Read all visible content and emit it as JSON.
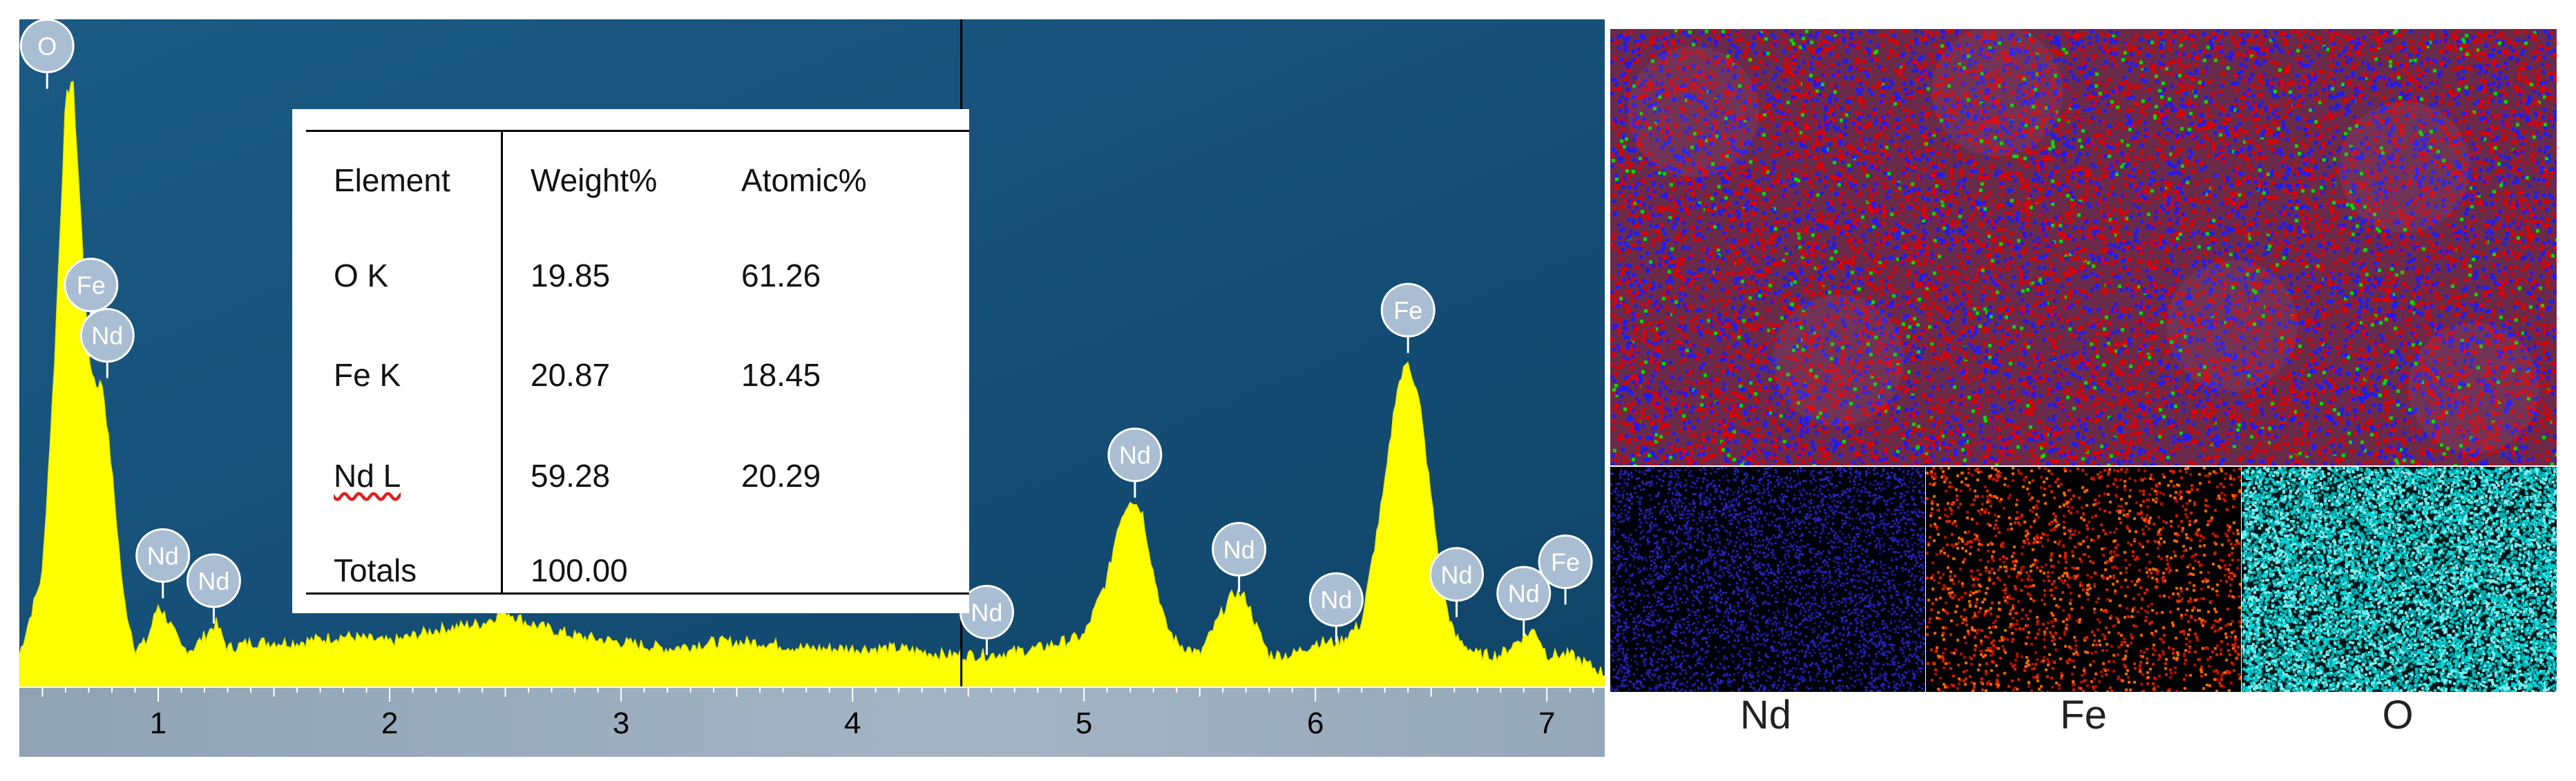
{
  "colors": {
    "plot_background": "#154f77",
    "spectrum_fill": "#ffff00",
    "axis_strip": "#94a7b8",
    "peak_marker": "#a9bed2",
    "map_red": "#e00000",
    "map_blue": "#1a1aff",
    "map_green": "#00e000",
    "map_nd": "#2626c8",
    "map_fe": "#e02000",
    "map_o": "#00d6d6"
  },
  "chart_data": {
    "type": "area",
    "x_ticks": [
      1,
      2,
      3,
      4,
      5,
      6,
      7
    ],
    "xlim": [
      0.4,
      7.25
    ],
    "ylim": [
      0,
      1
    ],
    "x": [
      0.4,
      0.5,
      0.55,
      0.6,
      0.63,
      0.66,
      0.7,
      0.73,
      0.76,
      0.8,
      0.85,
      0.9,
      0.95,
      1.0,
      1.05,
      1.1,
      1.15,
      1.2,
      1.25,
      1.3,
      1.4,
      1.6,
      1.8,
      2.0,
      2.2,
      2.4,
      2.5,
      2.6,
      2.8,
      3.0,
      3.2,
      3.4,
      3.6,
      3.8,
      4.0,
      4.2,
      4.4,
      4.6,
      4.8,
      5.0,
      5.1,
      5.15,
      5.2,
      5.25,
      5.3,
      5.35,
      5.4,
      5.5,
      5.6,
      5.65,
      5.7,
      5.75,
      5.8,
      5.9,
      6.0,
      6.1,
      6.2,
      6.3,
      6.35,
      6.4,
      6.45,
      6.5,
      6.55,
      6.6,
      6.7,
      6.8,
      6.9,
      6.95,
      7.0,
      7.1,
      7.25
    ],
    "y": [
      0.05,
      0.18,
      0.5,
      0.93,
      0.97,
      0.78,
      0.52,
      0.48,
      0.48,
      0.34,
      0.14,
      0.06,
      0.07,
      0.13,
      0.1,
      0.06,
      0.06,
      0.08,
      0.1,
      0.06,
      0.07,
      0.07,
      0.08,
      0.07,
      0.09,
      0.1,
      0.12,
      0.1,
      0.08,
      0.07,
      0.06,
      0.07,
      0.07,
      0.06,
      0.06,
      0.06,
      0.05,
      0.05,
      0.06,
      0.08,
      0.17,
      0.26,
      0.3,
      0.28,
      0.18,
      0.1,
      0.07,
      0.05,
      0.12,
      0.15,
      0.14,
      0.09,
      0.05,
      0.05,
      0.07,
      0.07,
      0.1,
      0.32,
      0.47,
      0.52,
      0.45,
      0.3,
      0.15,
      0.08,
      0.05,
      0.05,
      0.08,
      0.09,
      0.05,
      0.05,
      0.02
    ],
    "peaks": [
      {
        "label": "O",
        "x": 0.52,
        "y": 0.95
      },
      {
        "label": "Fe",
        "x": 0.71,
        "y": 0.57
      },
      {
        "label": "Nd",
        "x": 0.78,
        "y": 0.49
      },
      {
        "label": "Nd",
        "x": 1.02,
        "y": 0.14
      },
      {
        "label": "Nd",
        "x": 1.24,
        "y": 0.1
      },
      {
        "label": "Nd",
        "x": 4.58,
        "y": 0.05
      },
      {
        "label": "Nd",
        "x": 5.22,
        "y": 0.3
      },
      {
        "label": "Nd",
        "x": 5.67,
        "y": 0.15
      },
      {
        "label": "Nd",
        "x": 6.09,
        "y": 0.07
      },
      {
        "label": "Fe",
        "x": 6.4,
        "y": 0.53
      },
      {
        "label": "Nd",
        "x": 6.61,
        "y": 0.11
      },
      {
        "label": "Nd",
        "x": 6.9,
        "y": 0.08
      },
      {
        "label": "Fe",
        "x": 7.08,
        "y": 0.13
      }
    ],
    "cursor_x": 4.47
  },
  "table": {
    "headers": [
      "Element",
      "Weight%",
      "Atomic%"
    ],
    "rows": [
      {
        "element": "O K",
        "weight": "19.85",
        "atomic": "61.26"
      },
      {
        "element": "Fe K",
        "weight": "20.87",
        "atomic": "18.45"
      },
      {
        "element": "Nd L",
        "weight": "59.28",
        "atomic": "20.29"
      },
      {
        "element": "Totals",
        "weight": "100.00",
        "atomic": ""
      }
    ]
  },
  "maps": {
    "labels": [
      "Nd",
      "Fe",
      "O"
    ]
  }
}
